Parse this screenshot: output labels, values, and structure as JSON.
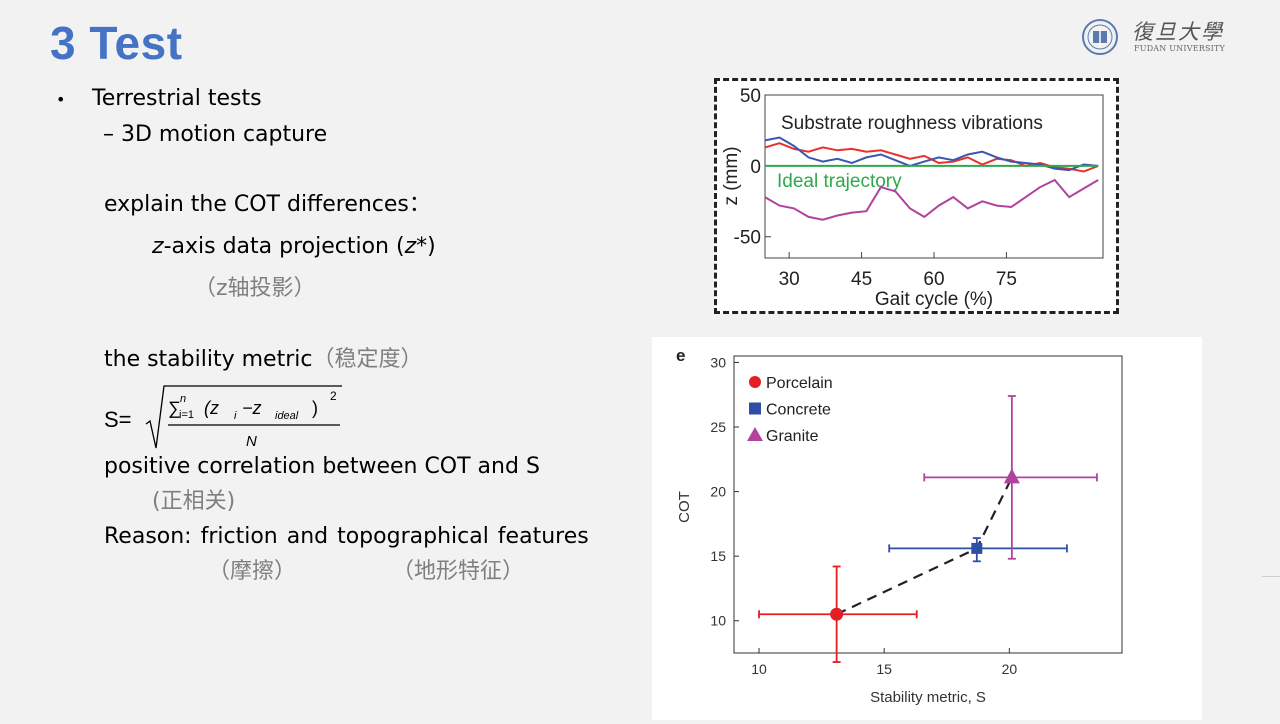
{
  "slide": {
    "title": "3 Test",
    "logo": {
      "icon": "fudan-seal-icon",
      "cn": "復旦大學",
      "en": "FUDAN UNIVERSITY"
    }
  },
  "content": {
    "bullet": "•",
    "l1": "Terrestrial tests",
    "l2": "– 3D motion capture",
    "l3": "explain the COT differences：",
    "l4": {
      "italic_z": "z",
      "rest": "-axis data projection (",
      "italic_z2": "z",
      "end": "*)"
    },
    "l5": "（z轴投影）",
    "l6": "the stability metric",
    "l6_cn": "（稳定度）",
    "formula": {
      "lhs": "S=",
      "sum": "∑",
      "upper": "n",
      "lower": "i=1",
      "body_open": "(z",
      "sub_i": "i",
      "minus": "−z",
      "sub_ideal": "ideal",
      "body_close": ")",
      "power": "2",
      "denominator": "N"
    },
    "l7": "positive correlation between COT and S",
    "l8": "(正相关)",
    "l9": "Reason: friction and topographical features",
    "l10a": "（摩擦）",
    "l10b": "（地形特征）"
  },
  "chart_data": [
    {
      "type": "line",
      "title": "Substrate roughness vibrations",
      "annotation": "Ideal trajectory",
      "xlabel": "Gait cycle (%)",
      "ylabel": "z (mm)",
      "xticks": [
        30,
        45,
        60,
        75
      ],
      "yticks": [
        50,
        0,
        -50
      ],
      "xlim": [
        25,
        95
      ],
      "ylim": [
        -65,
        50
      ],
      "colors": {
        "red": "#e8312b",
        "blue": "#3a56b0",
        "magenta": "#b0439d",
        "green": "#2ea84a"
      },
      "series": [
        {
          "color": "red",
          "x": [
            25,
            28,
            31,
            34,
            37,
            40,
            43,
            46,
            49,
            52,
            55,
            58,
            61,
            64,
            67,
            70,
            73,
            76,
            79,
            82,
            85,
            88,
            91,
            94
          ],
          "y": [
            13,
            16,
            12,
            10,
            13,
            11,
            12,
            10,
            11,
            8,
            5,
            7,
            2,
            3,
            6,
            1,
            5,
            4,
            0,
            2,
            -1,
            -2,
            -4,
            0
          ]
        },
        {
          "color": "blue",
          "x": [
            25,
            28,
            31,
            34,
            37,
            40,
            43,
            46,
            49,
            52,
            55,
            58,
            61,
            64,
            67,
            70,
            73,
            76,
            79,
            82,
            85,
            88,
            91,
            94
          ],
          "y": [
            18,
            20,
            14,
            6,
            3,
            5,
            2,
            6,
            8,
            4,
            0,
            3,
            6,
            4,
            8,
            10,
            6,
            3,
            2,
            1,
            -2,
            -3,
            1,
            0
          ]
        },
        {
          "color": "green",
          "x": [
            25,
            94
          ],
          "y": [
            0,
            0
          ]
        },
        {
          "color": "magenta",
          "x": [
            25,
            28,
            31,
            34,
            37,
            40,
            43,
            46,
            49,
            52,
            55,
            58,
            61,
            64,
            67,
            70,
            73,
            76,
            79,
            82,
            85,
            88,
            91,
            94
          ],
          "y": [
            -22,
            -28,
            -30,
            -36,
            -38,
            -35,
            -33,
            -32,
            -15,
            -18,
            -30,
            -36,
            -28,
            -22,
            -30,
            -25,
            -28,
            -29,
            -22,
            -15,
            -10,
            -22,
            -16,
            -10
          ]
        }
      ]
    },
    {
      "type": "scatter",
      "panel_label": "e",
      "xlabel": "Stability metric, S",
      "ylabel": "COT",
      "xlim": [
        9,
        24.5
      ],
      "ylim": [
        7.5,
        30.5
      ],
      "xticks": [
        10,
        15,
        20
      ],
      "yticks": [
        10,
        15,
        20,
        25,
        30
      ],
      "series": [
        {
          "name": "Porcelain",
          "marker": "circle",
          "color": "#e31e24",
          "x": 13.1,
          "y": 10.5,
          "xerr": [
            10.0,
            16.3
          ],
          "yerr": [
            6.8,
            14.2
          ]
        },
        {
          "name": "Concrete",
          "marker": "square",
          "color": "#2f4ea6",
          "x": 18.7,
          "y": 15.6,
          "xerr": [
            15.2,
            22.3
          ],
          "yerr": [
            14.6,
            16.4
          ]
        },
        {
          "name": "Granite",
          "marker": "triangle",
          "color": "#b0439d",
          "x": 20.1,
          "y": 21.1,
          "xerr": [
            16.6,
            23.5
          ],
          "yerr": [
            14.8,
            27.4
          ]
        }
      ],
      "trend": "dashed"
    }
  ]
}
